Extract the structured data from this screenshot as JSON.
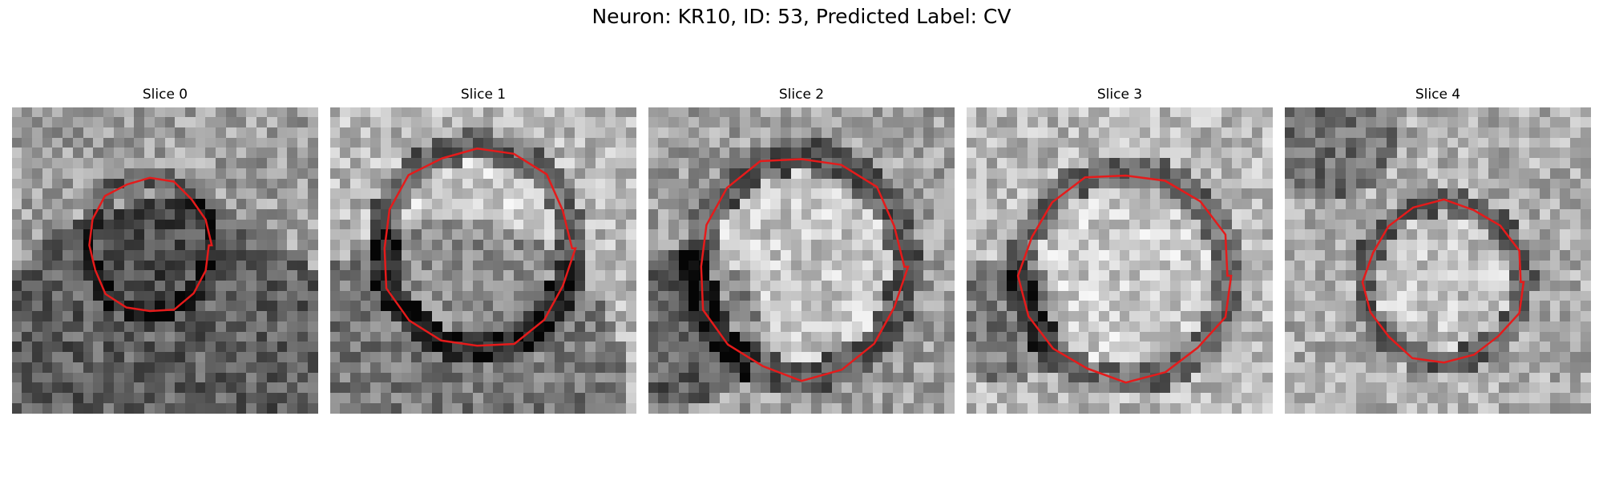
{
  "figure": {
    "title": "Neuron: KR10, ID: 53, Predicted Label: CV"
  },
  "panels": [
    {
      "title": "Slice 0"
    },
    {
      "title": "Slice 1"
    },
    {
      "title": "Slice 2"
    },
    {
      "title": "Slice 3"
    },
    {
      "title": "Slice 4"
    }
  ],
  "colors": {
    "contour": "#e51b1b",
    "background": "#ffffff",
    "text": "#000000"
  }
}
